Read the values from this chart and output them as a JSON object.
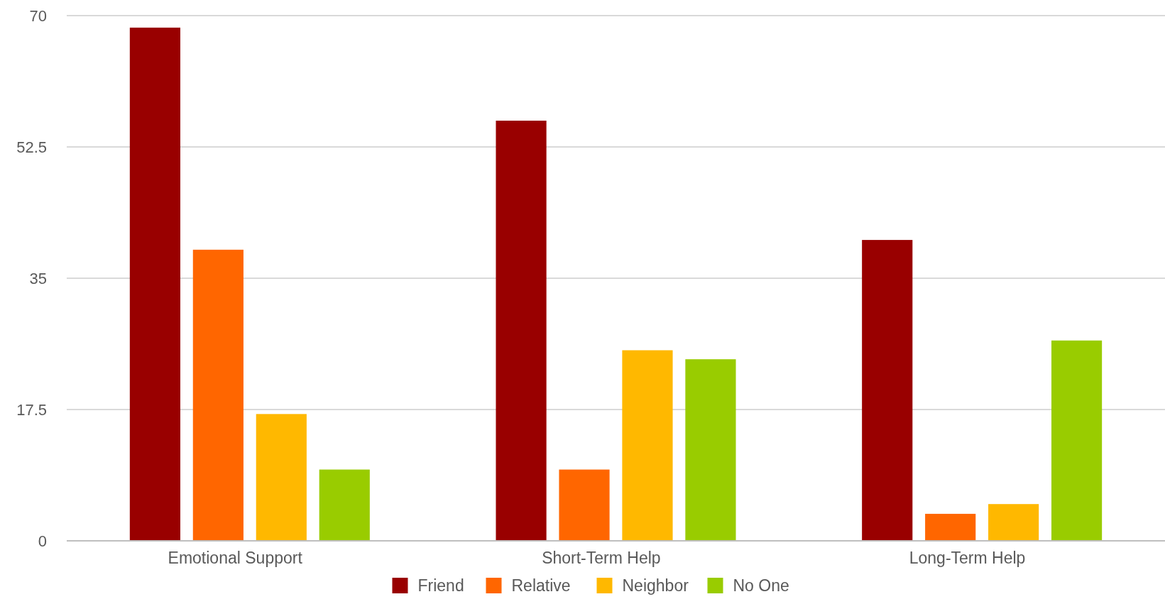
{
  "chart_data": {
    "type": "bar",
    "categories": [
      "Emotional Support",
      "Short-Term Help",
      "Long-Term Help"
    ],
    "series": [
      {
        "name": "Friend",
        "color": "#990000",
        "values": [
          68.4,
          56.0,
          40.1
        ]
      },
      {
        "name": "Relative",
        "color": "#ff6600",
        "values": [
          38.8,
          9.5,
          3.6
        ]
      },
      {
        "name": "Neighbor",
        "color": "#ffb800",
        "values": [
          16.9,
          25.4,
          4.9
        ]
      },
      {
        "name": "No One",
        "color": "#99cc00",
        "values": [
          9.5,
          24.2,
          26.7
        ]
      }
    ],
    "ylim": [
      0,
      70
    ],
    "yticks": [
      0,
      17.5,
      35,
      52.5,
      70
    ],
    "grid": "y",
    "legend": "bottom"
  }
}
